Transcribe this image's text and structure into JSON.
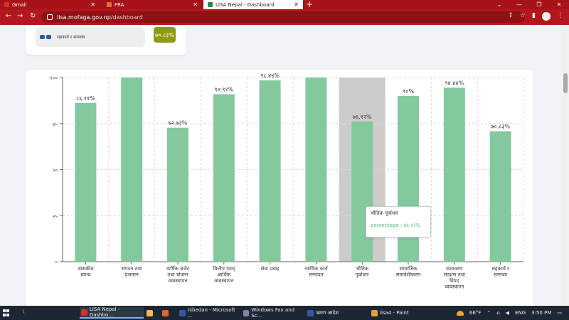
{
  "tabs": [
    {
      "label": "Gmail",
      "color": "#d93025"
    },
    {
      "label": "FRA",
      "color": "#d17a22"
    },
    {
      "label": "LISA Nepal - Dashboard",
      "color": "#2a8a4a",
      "active": true
    }
  ],
  "address": {
    "domain": "lisa.mofaga.gov.np",
    "path": "/dashboard"
  },
  "top_card": {
    "label": "सहकार्य र समन्वय",
    "badge": "७०.८३%"
  },
  "tooltip": {
    "title": "भौतिक पूर्वाधार",
    "value": "percentage : ७६.१२%"
  },
  "chart_data": {
    "type": "bar",
    "categories": [
      [
        "शासकीय",
        "प्रवन्ध"
      ],
      [
        "संगठन तथा",
        "प्रशासन"
      ],
      [
        "वार्षिक बजेट",
        "तथा योजना",
        "व्यवस्थापन"
      ],
      [
        "वित्तीय एवम्",
        "आर्थिक",
        "व्यवस्थापन"
      ],
      [
        "सेवा प्रवाह"
      ],
      [
        "न्यायिक कार्य",
        "सम्पादन"
      ],
      [
        "भौतिक",
        "पूर्वाधार"
      ],
      [
        "सामाजिक",
        "समावेशीकरण"
      ],
      [
        "वातावरण",
        "संरक्षण तथा",
        "विपद",
        "व्यवस्थापन"
      ],
      [
        "सहकार्य र",
        "समन्वय"
      ]
    ],
    "values": [
      86.11,
      100,
      72.73,
      90.91,
      98.44,
      100,
      76.12,
      90,
      94.44,
      70.83
    ],
    "data_labels": [
      "८६.११%",
      "",
      "७२.७३%",
      "९०.९१%",
      "९८.४४%",
      "",
      "७६.१२%",
      "९०%",
      "९४.४४%",
      "७०.८३%"
    ],
    "y_ticks": [
      "०",
      "२५",
      "५०",
      "७५",
      "१००"
    ],
    "y_tick_values": [
      0,
      25,
      50,
      75,
      100
    ],
    "ylim": [
      0,
      100
    ],
    "highlighted_index": 6,
    "grid": true,
    "bar_color": "#84c99d",
    "highlight_color": "#cccccc"
  },
  "taskbar": {
    "search": "\\",
    "items": [
      {
        "label": "LISA Nepal - Dashbo...",
        "color": "#d93025",
        "active": true
      },
      {
        "label": "",
        "color": "#f2b84b"
      },
      {
        "label": "",
        "color": "#e8612c"
      },
      {
        "label": "nibedan - Microsoft ...",
        "color": "#2b5aa8"
      },
      {
        "label": "Windows Fax and Sc...",
        "color": "#7a8aa0"
      },
      {
        "label": "भ्रमण आदेश",
        "color": "#2b5aa8"
      },
      {
        "label": "lisa4 - Paint",
        "color": "#e4a23a"
      }
    ],
    "temperature": "66°F",
    "lang": "ENG",
    "time": "3:50 PM"
  }
}
